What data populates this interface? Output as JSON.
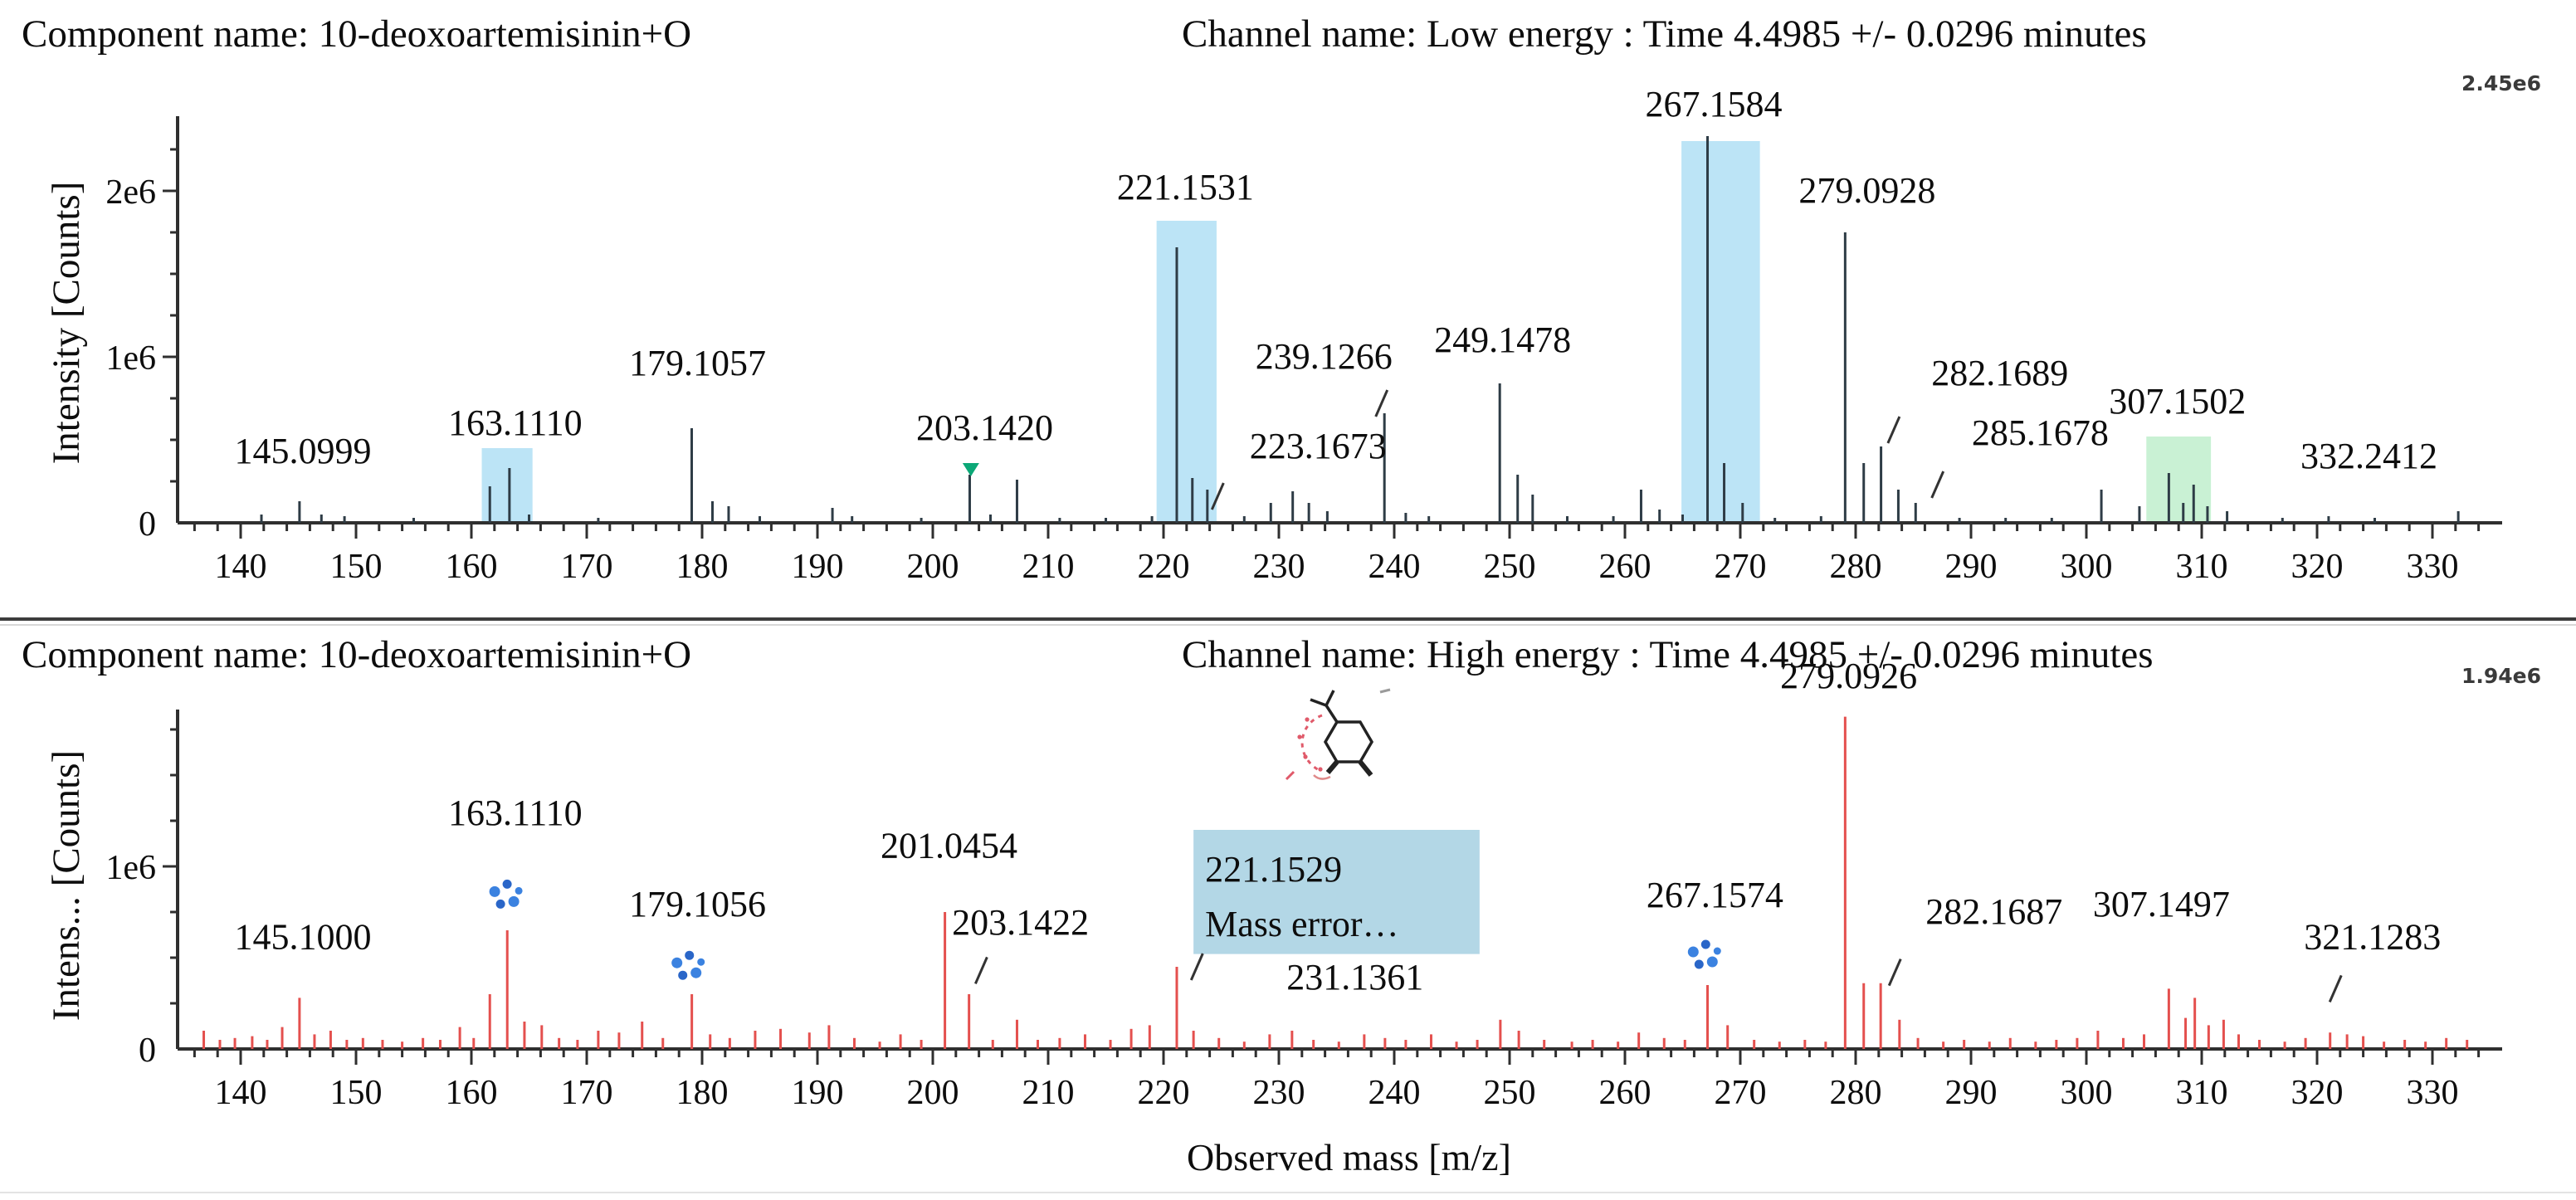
{
  "xaxis": {
    "label": "Observed mass [m/z]",
    "ticks": [
      140,
      150,
      160,
      170,
      180,
      190,
      200,
      210,
      220,
      230,
      240,
      250,
      260,
      270,
      280,
      290,
      300,
      310,
      320,
      330
    ],
    "minor_step": 2,
    "range": [
      134.5,
      336
    ]
  },
  "chart_data": [
    {
      "type": "bar",
      "title_left": "Component name: 10-deoxoartemisinin+O",
      "title_right": "Channel name: Low energy : Time 4.4985 +/- 0.0296 minutes",
      "ylabel": "Intensity [Counts]",
      "base_peak_intensity_label": "2.45e6",
      "ylim_e6": [
        0,
        2.45
      ],
      "yticks": [
        {
          "v": 0,
          "t": "0"
        },
        {
          "v": 1,
          "t": "1e6"
        },
        {
          "v": 2,
          "t": "2e6"
        }
      ],
      "y_minor_step": 0.25,
      "peak_color": "#2e3c46",
      "peaks": [
        [
          141.8,
          0.05
        ],
        [
          145.1,
          0.13
        ],
        [
          147.0,
          0.05
        ],
        [
          149.0,
          0.04
        ],
        [
          155.0,
          0.03
        ],
        [
          161.6,
          0.22
        ],
        [
          163.3,
          0.33
        ],
        [
          165.0,
          0.05
        ],
        [
          171.0,
          0.03
        ],
        [
          179.1,
          0.57
        ],
        [
          180.9,
          0.13
        ],
        [
          182.3,
          0.1
        ],
        [
          185.0,
          0.04
        ],
        [
          191.3,
          0.09
        ],
        [
          193.0,
          0.04
        ],
        [
          199.0,
          0.03
        ],
        [
          203.2,
          0.29
        ],
        [
          205.0,
          0.05
        ],
        [
          207.3,
          0.26
        ],
        [
          211.0,
          0.03
        ],
        [
          215.0,
          0.03
        ],
        [
          219.0,
          0.04
        ],
        [
          221.15,
          1.66
        ],
        [
          222.5,
          0.27
        ],
        [
          223.8,
          0.2
        ],
        [
          227.0,
          0.04
        ],
        [
          229.3,
          0.12
        ],
        [
          231.2,
          0.19
        ],
        [
          232.6,
          0.12
        ],
        [
          234.2,
          0.07
        ],
        [
          239.15,
          0.66
        ],
        [
          241.0,
          0.06
        ],
        [
          243.0,
          0.04
        ],
        [
          249.15,
          0.84
        ],
        [
          250.7,
          0.29
        ],
        [
          252.0,
          0.17
        ],
        [
          255.0,
          0.04
        ],
        [
          259.0,
          0.04
        ],
        [
          261.4,
          0.2
        ],
        [
          263.0,
          0.08
        ],
        [
          265.0,
          0.05
        ],
        [
          267.16,
          2.33
        ],
        [
          268.6,
          0.36
        ],
        [
          270.2,
          0.12
        ],
        [
          273.0,
          0.03
        ],
        [
          277.0,
          0.04
        ],
        [
          279.09,
          1.75
        ],
        [
          280.7,
          0.36
        ],
        [
          282.2,
          0.46
        ],
        [
          283.7,
          0.2
        ],
        [
          285.2,
          0.12
        ],
        [
          289.0,
          0.03
        ],
        [
          293.0,
          0.03
        ],
        [
          297.0,
          0.03
        ],
        [
          301.3,
          0.2
        ],
        [
          304.6,
          0.1
        ],
        [
          307.15,
          0.3
        ],
        [
          308.4,
          0.12
        ],
        [
          309.3,
          0.23
        ],
        [
          310.5,
          0.1
        ],
        [
          312.2,
          0.07
        ],
        [
          317.0,
          0.03
        ],
        [
          321.0,
          0.04
        ],
        [
          325.0,
          0.03
        ],
        [
          332.24,
          0.07
        ]
      ],
      "highlights": [
        {
          "from": 160.9,
          "to": 165.3,
          "top": 0.45,
          "color": "#bce4f6"
        },
        {
          "from": 219.4,
          "to": 224.6,
          "top": 1.82,
          "color": "#bce4f6"
        },
        {
          "from": 264.9,
          "to": 271.7,
          "top": 2.3,
          "color": "#bce4f6"
        },
        {
          "from": 305.2,
          "to": 310.8,
          "top": 0.52,
          "color": "#c9f1d4"
        }
      ],
      "labels": [
        {
          "text": "145.0999",
          "mz": 145.4,
          "v": 0.33
        },
        {
          "text": "163.1110",
          "mz": 163.8,
          "v": 0.5
        },
        {
          "text": "179.1057",
          "mz": 179.6,
          "v": 0.86
        },
        {
          "text": "203.1420",
          "mz": 204.5,
          "v": 0.47
        },
        {
          "text": "221.1531",
          "mz": 221.9,
          "v": 1.92
        },
        {
          "text": "239.1266",
          "mz": 233.9,
          "v": 0.9,
          "slash": {
            "mz": 238.9,
            "v": 0.72
          }
        },
        {
          "text": "223.1673",
          "mz": 233.4,
          "v": 0.36,
          "slash": {
            "mz": 224.7,
            "v": 0.16
          }
        },
        {
          "text": "249.1478",
          "mz": 249.4,
          "v": 1.0
        },
        {
          "text": "267.1584",
          "mz": 267.7,
          "v": 2.42
        },
        {
          "text": "279.0928",
          "mz": 281.0,
          "v": 1.9
        },
        {
          "text": "282.1689",
          "mz": 292.5,
          "v": 0.8,
          "slash": {
            "mz": 283.3,
            "v": 0.56
          }
        },
        {
          "text": "285.1678",
          "mz": 296.0,
          "v": 0.44,
          "slash": {
            "mz": 287.1,
            "v": 0.23
          }
        },
        {
          "text": "307.1502",
          "mz": 307.9,
          "v": 0.63
        },
        {
          "text": "332.2412",
          "mz": 324.5,
          "v": 0.3
        }
      ],
      "markers": [
        {
          "type": "triangle-down",
          "mz": 203.3,
          "v": 0.315,
          "color": "#0ca877"
        }
      ],
      "dot_clusters": []
    },
    {
      "type": "bar",
      "title_left": "Component name: 10-deoxoartemisinin+O",
      "title_right": "Channel name: High energy : Time 4.4985 +/- 0.0296 minutes",
      "ylabel": "Intens... [Counts]",
      "base_peak_intensity_label": "1.94e6",
      "ylim_e6": [
        0,
        1.94
      ],
      "yticks": [
        {
          "v": 0,
          "t": "0"
        },
        {
          "v": 1,
          "t": "1e6"
        }
      ],
      "y_minor_step": 0.25,
      "peak_color": "#e4504e",
      "peaks": [
        [
          136.8,
          0.1
        ],
        [
          138.2,
          0.05
        ],
        [
          139.5,
          0.06
        ],
        [
          141.0,
          0.07
        ],
        [
          142.3,
          0.05
        ],
        [
          143.6,
          0.12
        ],
        [
          145.1,
          0.28
        ],
        [
          146.4,
          0.08
        ],
        [
          147.8,
          0.1
        ],
        [
          149.2,
          0.05
        ],
        [
          150.6,
          0.06
        ],
        [
          152.3,
          0.05
        ],
        [
          154.0,
          0.04
        ],
        [
          155.8,
          0.06
        ],
        [
          157.3,
          0.05
        ],
        [
          159.0,
          0.12
        ],
        [
          160.2,
          0.06
        ],
        [
          161.6,
          0.3
        ],
        [
          163.11,
          0.65
        ],
        [
          164.6,
          0.15
        ],
        [
          166.1,
          0.13
        ],
        [
          167.6,
          0.06
        ],
        [
          169.2,
          0.05
        ],
        [
          171.0,
          0.1
        ],
        [
          172.8,
          0.09
        ],
        [
          174.8,
          0.15
        ],
        [
          176.6,
          0.06
        ],
        [
          179.11,
          0.3
        ],
        [
          180.7,
          0.08
        ],
        [
          182.4,
          0.06
        ],
        [
          184.6,
          0.1
        ],
        [
          186.8,
          0.11
        ],
        [
          189.3,
          0.09
        ],
        [
          191.0,
          0.13
        ],
        [
          193.2,
          0.06
        ],
        [
          195.4,
          0.04
        ],
        [
          197.2,
          0.08
        ],
        [
          199.0,
          0.05
        ],
        [
          201.05,
          0.75
        ],
        [
          203.14,
          0.3
        ],
        [
          205.2,
          0.05
        ],
        [
          207.3,
          0.16
        ],
        [
          209.1,
          0.05
        ],
        [
          211.0,
          0.06
        ],
        [
          213.2,
          0.08
        ],
        [
          215.4,
          0.05
        ],
        [
          217.2,
          0.11
        ],
        [
          218.8,
          0.13
        ],
        [
          221.15,
          0.45
        ],
        [
          222.6,
          0.1
        ],
        [
          224.8,
          0.06
        ],
        [
          227.0,
          0.04
        ],
        [
          229.2,
          0.08
        ],
        [
          231.14,
          0.1
        ],
        [
          233.0,
          0.05
        ],
        [
          235.2,
          0.04
        ],
        [
          237.4,
          0.08
        ],
        [
          239.2,
          0.06
        ],
        [
          241.0,
          0.05
        ],
        [
          243.2,
          0.08
        ],
        [
          245.4,
          0.04
        ],
        [
          247.2,
          0.05
        ],
        [
          249.2,
          0.16
        ],
        [
          250.8,
          0.1
        ],
        [
          253.0,
          0.05
        ],
        [
          255.4,
          0.04
        ],
        [
          257.2,
          0.05
        ],
        [
          259.4,
          0.04
        ],
        [
          261.2,
          0.09
        ],
        [
          263.4,
          0.06
        ],
        [
          265.2,
          0.05
        ],
        [
          267.16,
          0.35
        ],
        [
          268.9,
          0.13
        ],
        [
          271.2,
          0.05
        ],
        [
          273.4,
          0.04
        ],
        [
          275.6,
          0.05
        ],
        [
          277.4,
          0.04
        ],
        [
          279.09,
          1.82
        ],
        [
          280.7,
          0.36
        ],
        [
          282.17,
          0.36
        ],
        [
          283.8,
          0.16
        ],
        [
          285.4,
          0.06
        ],
        [
          287.6,
          0.04
        ],
        [
          289.4,
          0.05
        ],
        [
          291.6,
          0.04
        ],
        [
          293.4,
          0.06
        ],
        [
          295.6,
          0.04
        ],
        [
          297.4,
          0.05
        ],
        [
          299.2,
          0.06
        ],
        [
          301.0,
          0.1
        ],
        [
          303.2,
          0.06
        ],
        [
          305.0,
          0.08
        ],
        [
          307.15,
          0.33
        ],
        [
          308.6,
          0.17
        ],
        [
          309.4,
          0.28
        ],
        [
          310.6,
          0.13
        ],
        [
          311.9,
          0.16
        ],
        [
          313.2,
          0.08
        ],
        [
          315.0,
          0.05
        ],
        [
          317.2,
          0.04
        ],
        [
          319.0,
          0.06
        ],
        [
          321.13,
          0.09
        ],
        [
          322.6,
          0.08
        ],
        [
          324.0,
          0.07
        ],
        [
          325.8,
          0.04
        ],
        [
          327.6,
          0.05
        ],
        [
          329.4,
          0.04
        ],
        [
          331.2,
          0.06
        ],
        [
          333.0,
          0.05
        ]
      ],
      "highlights": [],
      "labels": [
        {
          "text": "145.1000",
          "mz": 145.4,
          "v": 0.52
        },
        {
          "text": "163.1110",
          "mz": 163.8,
          "v": 1.2
        },
        {
          "text": "179.1056",
          "mz": 179.6,
          "v": 0.7
        },
        {
          "text": "201.0454",
          "mz": 201.4,
          "v": 1.02
        },
        {
          "text": "203.1422",
          "mz": 207.6,
          "v": 0.6,
          "slash": {
            "mz": 204.2,
            "v": 0.43
          }
        },
        {
          "text": "231.1361",
          "mz": 236.6,
          "v": 0.3,
          "slash": {
            "mz": 222.9,
            "v": 0.45
          }
        },
        {
          "text": "267.1574",
          "mz": 267.8,
          "v": 0.75
        },
        {
          "text": "279.0926",
          "mz": 279.4,
          "v": 1.95
        },
        {
          "text": "282.1687",
          "mz": 292.0,
          "v": 0.66,
          "slash": {
            "mz": 283.4,
            "v": 0.42
          }
        },
        {
          "text": "307.1497",
          "mz": 306.5,
          "v": 0.7
        },
        {
          "text": "321.1283",
          "mz": 324.8,
          "v": 0.52,
          "slash": {
            "mz": 321.6,
            "v": 0.33
          }
        }
      ],
      "markers": [],
      "dot_clusters": [
        {
          "mz": 163.1,
          "v": 0.83
        },
        {
          "mz": 178.9,
          "v": 0.44
        },
        {
          "mz": 267.0,
          "v": 0.5
        }
      ],
      "annotation_box": {
        "line1": "221.1529",
        "line2": "Mass error…",
        "from_mz": 222.6,
        "to_mz": 247.4,
        "top_v": 1.2,
        "bottom_v": 0.52,
        "fill": "#b3d7e6",
        "text_color": "#17475c"
      }
    }
  ],
  "dot_color_a": "#3b82e0",
  "dot_color_b": "#2a66c8"
}
